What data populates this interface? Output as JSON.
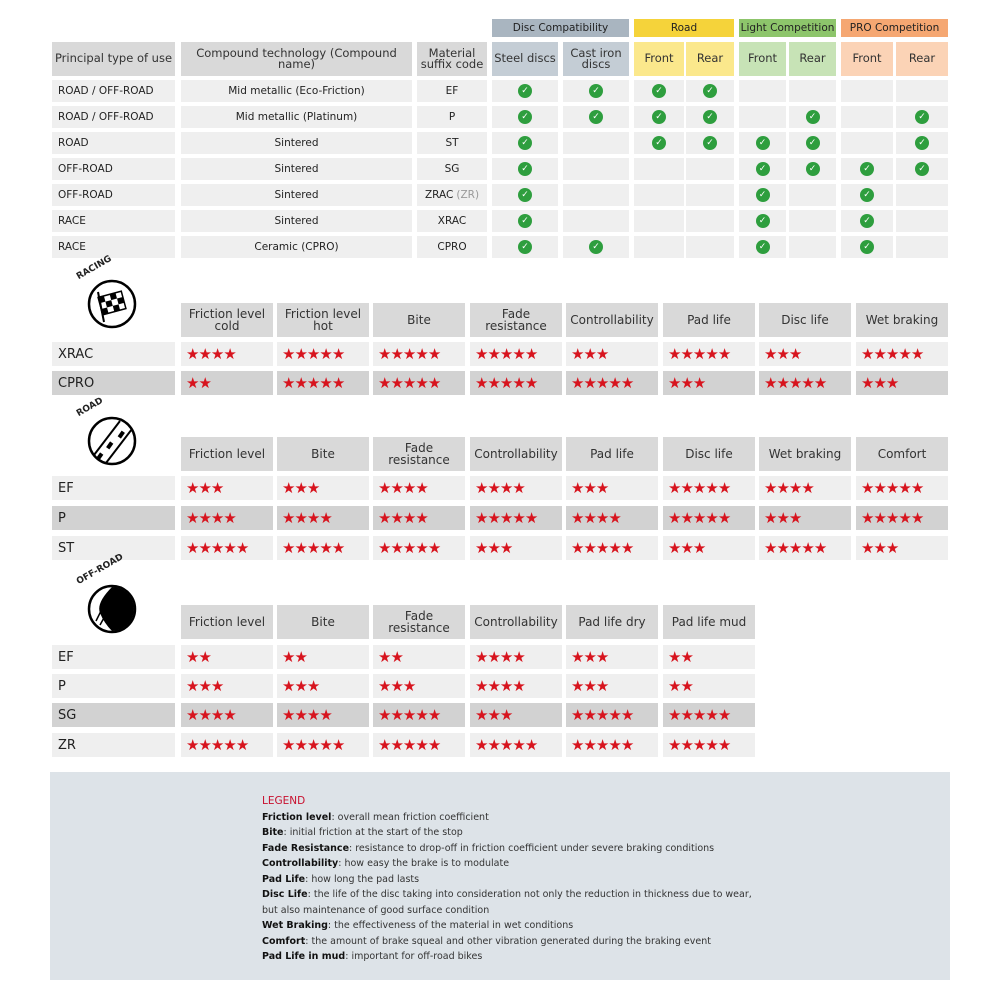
{
  "compatibility_table": {
    "groups": [
      {
        "label": "Disc Compatibility",
        "color": "#a9b5c0",
        "sub_color": "#c4cdd5",
        "columns": [
          "Steel discs",
          "Cast iron discs"
        ]
      },
      {
        "label": "Road",
        "color": "#f5d33a",
        "sub_color": "#fbe88c",
        "columns": [
          "Front",
          "Rear"
        ]
      },
      {
        "label": "Light Competition",
        "color": "#8dc56b",
        "sub_color": "#c7e3b6",
        "columns": [
          "Front",
          "Rear"
        ]
      },
      {
        "label": "PRO Competition",
        "color": "#f5a772",
        "sub_color": "#fbd3b6",
        "columns": [
          "Front",
          "Rear"
        ]
      }
    ],
    "headers": [
      "Principal type of use",
      "Compound technology (Compound name)",
      "Material suffix code"
    ],
    "rows": [
      {
        "use": "ROAD / OFF-ROAD",
        "compound": "Mid metallic (Eco-Friction)",
        "code": "EF",
        "code_suffix": "",
        "checks": [
          1,
          1,
          1,
          1,
          0,
          0,
          0,
          0
        ]
      },
      {
        "use": "ROAD / OFF-ROAD",
        "compound": "Mid metallic (Platinum)",
        "code": "P",
        "code_suffix": "",
        "checks": [
          1,
          1,
          1,
          1,
          0,
          1,
          0,
          1
        ]
      },
      {
        "use": "ROAD",
        "compound": "Sintered",
        "code": "ST",
        "code_suffix": "",
        "checks": [
          1,
          0,
          1,
          1,
          1,
          1,
          0,
          1
        ]
      },
      {
        "use": "OFF-ROAD",
        "compound": "Sintered",
        "code": "SG",
        "code_suffix": "",
        "checks": [
          1,
          0,
          0,
          0,
          1,
          1,
          1,
          1
        ]
      },
      {
        "use": "OFF-ROAD",
        "compound": "Sintered",
        "code": "ZRAC",
        "code_suffix": "(ZR)",
        "checks": [
          1,
          0,
          0,
          0,
          1,
          0,
          1,
          0
        ]
      },
      {
        "use": "RACE",
        "compound": "Sintered",
        "code": "XRAC",
        "code_suffix": "",
        "checks": [
          1,
          0,
          0,
          0,
          1,
          0,
          1,
          0
        ]
      },
      {
        "use": "RACE",
        "compound": "Ceramic (CPRO)",
        "code": "CPRO",
        "code_suffix": "",
        "checks": [
          1,
          1,
          0,
          0,
          1,
          0,
          1,
          0
        ]
      }
    ],
    "check_icon": "check-circle-icon",
    "check_color": "#2e9e3e"
  },
  "ratings": [
    {
      "badge": "RACING",
      "icon": "checkered-flag-icon",
      "columns": [
        "Friction level cold",
        "Friction level hot",
        "Bite",
        "Fade resistance",
        "Controllability",
        "Pad life",
        "Disc life",
        "Wet braking"
      ],
      "rows": [
        {
          "name": "XRAC",
          "shaded": false,
          "stars": [
            4,
            5,
            5,
            5,
            3,
            5,
            3,
            5
          ]
        },
        {
          "name": "CPRO",
          "shaded": true,
          "stars": [
            2,
            5,
            5,
            5,
            5,
            3,
            5,
            3
          ]
        }
      ]
    },
    {
      "badge": "ROAD",
      "icon": "road-icon",
      "columns": [
        "Friction level",
        "Bite",
        "Fade resistance",
        "Controllability",
        "Pad life",
        "Disc life",
        "Wet braking",
        "Comfort"
      ],
      "rows": [
        {
          "name": "EF",
          "shaded": false,
          "stars": [
            3,
            3,
            4,
            4,
            3,
            5,
            4,
            5
          ]
        },
        {
          "name": "P",
          "shaded": true,
          "stars": [
            4,
            4,
            4,
            5,
            4,
            5,
            3,
            5
          ]
        },
        {
          "name": "ST",
          "shaded": false,
          "stars": [
            5,
            5,
            5,
            3,
            5,
            3,
            5,
            3
          ]
        }
      ]
    },
    {
      "badge": "OFF-ROAD",
      "icon": "off-road-mud-icon",
      "columns": [
        "Friction level",
        "Bite",
        "Fade resistance",
        "Controllability",
        "Pad life dry",
        "Pad life mud"
      ],
      "rows": [
        {
          "name": "EF",
          "shaded": false,
          "stars": [
            2,
            2,
            2,
            4,
            3,
            2
          ]
        },
        {
          "name": "P",
          "shaded": false,
          "stars": [
            3,
            3,
            3,
            4,
            3,
            2
          ]
        },
        {
          "name": "SG",
          "shaded": true,
          "stars": [
            4,
            4,
            5,
            3,
            5,
            5
          ]
        },
        {
          "name": "ZR",
          "shaded": false,
          "stars": [
            5,
            5,
            5,
            5,
            5,
            5
          ]
        }
      ]
    }
  ],
  "star_color": "#d7141e",
  "legend": {
    "title": "LEGEND",
    "items": [
      {
        "term": "Friction level",
        "desc": ": overall mean friction coefficient"
      },
      {
        "term": "Bite",
        "desc": ": initial friction at the start of the stop"
      },
      {
        "term": "Fade Resistance",
        "desc": ": resistance to drop-off in friction coefficient under severe braking conditions"
      },
      {
        "term": "Controllability",
        "desc": ": how easy the brake is to modulate"
      },
      {
        "term": "Pad Life",
        "desc": ": how long the pad lasts"
      },
      {
        "term": "Disc Life",
        "desc": ": the life of the disc taking into consideration not only the reduction in thickness due to wear,"
      },
      {
        "term": "",
        "desc": "but also maintenance of good surface condition"
      },
      {
        "term": "Wet Braking",
        "desc": ": the effectiveness of the material in wet conditions"
      },
      {
        "term": "Comfort",
        "desc": ": the amount of brake squeal and other vibration generated during the braking event"
      },
      {
        "term": "Pad Life in mud",
        "desc": ": important for off-road bikes"
      }
    ]
  }
}
